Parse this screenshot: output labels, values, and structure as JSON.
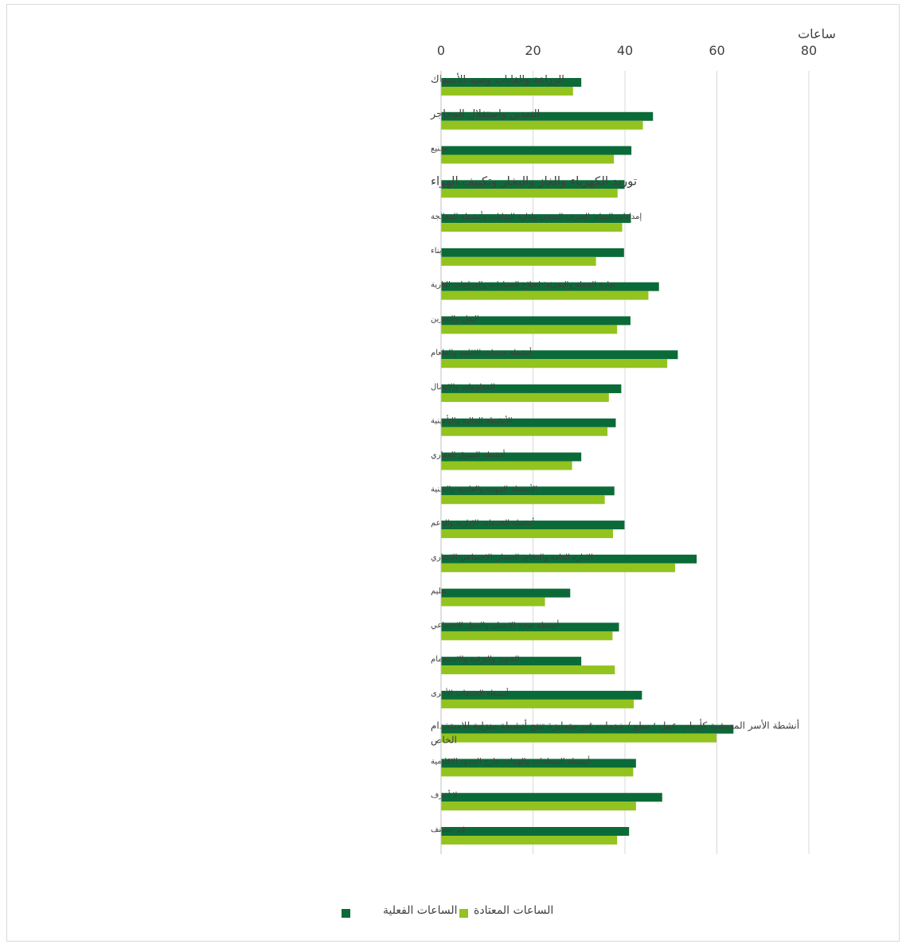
{
  "chart_data": {
    "type": "bar",
    "orientation": "horizontal",
    "direction": "rtl",
    "axis_unit_label": "ساعات",
    "xlim": [
      0,
      80
    ],
    "xticks": [
      0,
      20,
      40,
      60,
      80
    ],
    "grid": true,
    "legend_position": "bottom",
    "categories": [
      "الزراعة والغابات وصيد الأسماك",
      "التعدين واستغلال المحاجر",
      "تصنيع",
      "توريد الكهرباء والغاز والبخار وتكييف الهواء",
      "إمدادات المياه؛ الصرف الصحي وإدارة النفايات وأنشطة المعالجة",
      "بناء",
      "تجارة الجملة والتجزئة؛ إصلاح السيارات والدراجات النارية",
      "النقل والتخزين",
      "أنشطة خدمات الإقامة والطعام",
      "المعلومات والاتصال",
      "الأنشطة المالية والتأمينية",
      "أنشطة السوق العقاري",
      "الأنشطة المهنية والعلمية والتقنية",
      "أنشطة الخدمات الإدارية والدعم",
      "الإدارة العامة والدفاع؛ الضمان الاجتماعي الإجباري",
      "تعليم",
      "أنشطة صحة الإنسان والعمل الاجتماعي",
      "الفنون والترفيه والاستجمام",
      "أنشطة الخدمات الأخرى",
      "أنشطة الأسر المعيشية كأرباب عمل ؛ سلع / خدمات غير متمايزة تنتج أنشطة منزلية للاستخدام الخاص",
      "أنشطة المنظمات والهيئات خارج الحدود الإقليمية",
      "لا أعرف",
      "غير مصنف"
    ],
    "series": [
      {
        "name": "الساعات الفعلية",
        "color": "#0b6b38",
        "values": [
          30.5,
          46.1,
          41.4,
          39.9,
          41.3,
          39.8,
          47.4,
          41.2,
          51.5,
          39.2,
          38.0,
          30.5,
          37.7,
          39.9,
          55.6,
          28.1,
          38.7,
          30.5,
          43.7,
          63.6,
          42.4,
          48.1,
          40.9
        ]
      },
      {
        "name": "الساعات المعتادة",
        "color": "#92c31f",
        "values": [
          28.7,
          43.9,
          37.6,
          38.4,
          39.4,
          33.7,
          45.1,
          38.3,
          49.2,
          36.5,
          36.2,
          28.5,
          35.6,
          37.4,
          50.9,
          22.6,
          37.3,
          37.8,
          41.9,
          59.9,
          41.8,
          42.4,
          38.3
        ]
      }
    ]
  }
}
